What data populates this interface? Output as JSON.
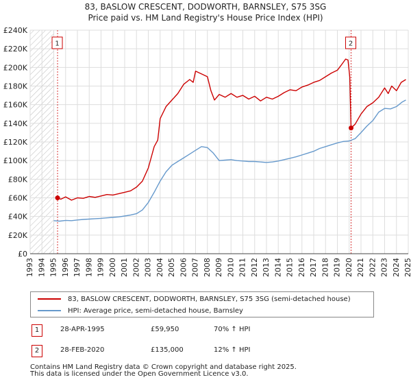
{
  "title_line1": "83, BASLOW CRESCENT, DODWORTH, BARNSLEY, S75 3SG",
  "title_line2": "Price paid vs. HM Land Registry's House Price Index (HPI)",
  "colors": {
    "price_line": "#cc0000",
    "hpi_line": "#6699cc",
    "marker_box": "#cc0000",
    "grid": "#dddddd",
    "hatch": "#bbbbbb"
  },
  "legend": {
    "price_label": "83, BASLOW CRESCENT, DODWORTH, BARNSLEY, S75 3SG (semi-detached house)",
    "hpi_label": "HPI: Average price, semi-detached house, Barnsley"
  },
  "transactions": [
    {
      "num": "1",
      "date": "28-APR-1995",
      "price": "£59,950",
      "hpi_change": "70% ↑ HPI"
    },
    {
      "num": "2",
      "date": "28-FEB-2020",
      "price": "£135,000",
      "hpi_change": "12% ↑ HPI"
    }
  ],
  "footer_line1": "Contains HM Land Registry data © Crown copyright and database right 2025.",
  "footer_line2": "This data is licensed under the Open Government Licence v3.0.",
  "chart_data": {
    "type": "line",
    "xlim": [
      1993,
      2025
    ],
    "ylim": [
      0,
      240000
    ],
    "x_ticks": [
      1993,
      1994,
      1995,
      1996,
      1997,
      1998,
      1999,
      2000,
      2001,
      2002,
      2003,
      2004,
      2005,
      2006,
      2007,
      2008,
      2009,
      2010,
      2011,
      2012,
      2013,
      2014,
      2015,
      2016,
      2017,
      2018,
      2019,
      2020,
      2021,
      2022,
      2023,
      2024,
      2025
    ],
    "y_ticks": [
      {
        "value": 0,
        "label": "£0"
      },
      {
        "value": 20000,
        "label": "£20K"
      },
      {
        "value": 40000,
        "label": "£40K"
      },
      {
        "value": 60000,
        "label": "£60K"
      },
      {
        "value": 80000,
        "label": "£80K"
      },
      {
        "value": 100000,
        "label": "£100K"
      },
      {
        "value": 120000,
        "label": "£120K"
      },
      {
        "value": 140000,
        "label": "£140K"
      },
      {
        "value": 160000,
        "label": "£160K"
      },
      {
        "value": 180000,
        "label": "£180K"
      },
      {
        "value": 200000,
        "label": "£200K"
      },
      {
        "value": 220000,
        "label": "£220K"
      },
      {
        "value": 240000,
        "label": "£240K"
      }
    ],
    "hatch_until": 1995.0,
    "series": [
      {
        "name": "83, BASLOW CRESCENT, DODWORTH, BARNSLEY, S75 3SG (semi-detached house)",
        "points": [
          [
            1995.32,
            59950
          ],
          [
            1995.6,
            58500
          ],
          [
            1996.0,
            61000
          ],
          [
            1996.5,
            57500
          ],
          [
            1997.0,
            60000
          ],
          [
            1997.5,
            59500
          ],
          [
            1998.0,
            61500
          ],
          [
            1998.5,
            60500
          ],
          [
            1999.0,
            62000
          ],
          [
            1999.5,
            63500
          ],
          [
            2000.0,
            63000
          ],
          [
            2000.5,
            64500
          ],
          [
            2001.0,
            66000
          ],
          [
            2001.5,
            67500
          ],
          [
            2002.0,
            71500
          ],
          [
            2002.5,
            78000
          ],
          [
            2003.0,
            92000
          ],
          [
            2003.5,
            115000
          ],
          [
            2003.8,
            122000
          ],
          [
            2004.0,
            145000
          ],
          [
            2004.5,
            158000
          ],
          [
            2005.0,
            165000
          ],
          [
            2005.5,
            172000
          ],
          [
            2006.0,
            182000
          ],
          [
            2006.5,
            187000
          ],
          [
            2006.8,
            184000
          ],
          [
            2007.0,
            196000
          ],
          [
            2007.5,
            193000
          ],
          [
            2008.0,
            190000
          ],
          [
            2008.3,
            175000
          ],
          [
            2008.6,
            165000
          ],
          [
            2009.0,
            171000
          ],
          [
            2009.5,
            168000
          ],
          [
            2010.0,
            172000
          ],
          [
            2010.5,
            168000
          ],
          [
            2011.0,
            170000
          ],
          [
            2011.5,
            166000
          ],
          [
            2012.0,
            169000
          ],
          [
            2012.5,
            164000
          ],
          [
            2013.0,
            168000
          ],
          [
            2013.5,
            166000
          ],
          [
            2014.0,
            169000
          ],
          [
            2014.5,
            173000
          ],
          [
            2015.0,
            176000
          ],
          [
            2015.5,
            175000
          ],
          [
            2016.0,
            179000
          ],
          [
            2016.5,
            181000
          ],
          [
            2017.0,
            184000
          ],
          [
            2017.5,
            186000
          ],
          [
            2018.0,
            190000
          ],
          [
            2018.5,
            194000
          ],
          [
            2019.0,
            197000
          ],
          [
            2019.3,
            202000
          ],
          [
            2019.7,
            209000
          ],
          [
            2019.9,
            208000
          ],
          [
            2020.05,
            190000
          ],
          [
            2020.16,
            135000
          ],
          [
            2020.5,
            139000
          ],
          [
            2021.0,
            150000
          ],
          [
            2021.5,
            158000
          ],
          [
            2022.0,
            162000
          ],
          [
            2022.5,
            168000
          ],
          [
            2023.0,
            178000
          ],
          [
            2023.3,
            172000
          ],
          [
            2023.6,
            180000
          ],
          [
            2024.0,
            175000
          ],
          [
            2024.4,
            184000
          ],
          [
            2024.8,
            187000
          ]
        ]
      },
      {
        "name": "HPI: Average price, semi-detached house, Barnsley",
        "points": [
          [
            1995.0,
            35500
          ],
          [
            1995.5,
            35000
          ],
          [
            1996.0,
            35800
          ],
          [
            1996.5,
            35500
          ],
          [
            1997.0,
            36200
          ],
          [
            1997.5,
            36800
          ],
          [
            1998.0,
            37200
          ],
          [
            1998.5,
            37600
          ],
          [
            1999.0,
            38000
          ],
          [
            1999.5,
            38500
          ],
          [
            2000.0,
            39000
          ],
          [
            2000.5,
            39500
          ],
          [
            2001.0,
            40500
          ],
          [
            2001.5,
            41500
          ],
          [
            2002.0,
            43000
          ],
          [
            2002.5,
            47000
          ],
          [
            2003.0,
            55000
          ],
          [
            2003.5,
            66000
          ],
          [
            2004.0,
            78000
          ],
          [
            2004.5,
            88000
          ],
          [
            2005.0,
            95000
          ],
          [
            2005.5,
            99000
          ],
          [
            2006.0,
            103000
          ],
          [
            2006.5,
            107000
          ],
          [
            2007.0,
            111000
          ],
          [
            2007.5,
            115000
          ],
          [
            2008.0,
            114000
          ],
          [
            2008.5,
            108000
          ],
          [
            2009.0,
            100000
          ],
          [
            2009.5,
            100500
          ],
          [
            2010.0,
            101000
          ],
          [
            2010.5,
            100000
          ],
          [
            2011.0,
            99500
          ],
          [
            2011.5,
            99000
          ],
          [
            2012.0,
            99000
          ],
          [
            2012.5,
            98500
          ],
          [
            2013.0,
            98000
          ],
          [
            2013.5,
            98500
          ],
          [
            2014.0,
            99500
          ],
          [
            2014.5,
            101000
          ],
          [
            2015.0,
            102500
          ],
          [
            2015.5,
            104000
          ],
          [
            2016.0,
            106000
          ],
          [
            2016.5,
            108000
          ],
          [
            2017.0,
            110000
          ],
          [
            2017.5,
            113000
          ],
          [
            2018.0,
            115000
          ],
          [
            2018.5,
            117000
          ],
          [
            2019.0,
            119000
          ],
          [
            2019.5,
            120500
          ],
          [
            2020.0,
            121000
          ],
          [
            2020.5,
            123500
          ],
          [
            2021.0,
            130000
          ],
          [
            2021.5,
            137000
          ],
          [
            2022.0,
            143000
          ],
          [
            2022.5,
            152000
          ],
          [
            2023.0,
            156000
          ],
          [
            2023.5,
            155500
          ],
          [
            2024.0,
            158000
          ],
          [
            2024.5,
            163000
          ],
          [
            2024.8,
            165000
          ]
        ]
      }
    ],
    "markers": [
      {
        "label": "1",
        "x": 1995.32,
        "y": 59950
      },
      {
        "label": "2",
        "x": 2020.16,
        "y": 135000
      }
    ]
  }
}
